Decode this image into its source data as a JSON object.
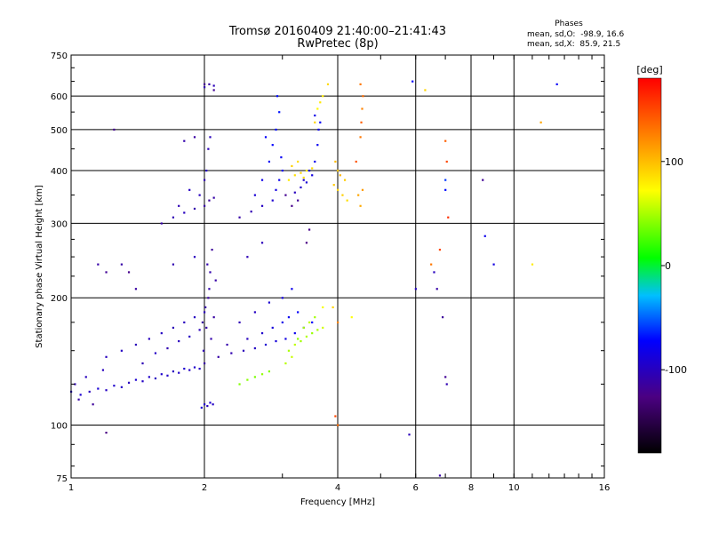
{
  "header": {
    "title_line1": "Tromsø 20160409 21:40:00–21:41:43",
    "title_line2": "RwPretec (8p)",
    "phases_title": "Phases",
    "phases_o": "mean, sd,O:  -98.9, 16.6",
    "phases_x": "mean, sd,X:  85.9, 21.5"
  },
  "colorbar": {
    "label": "[deg]",
    "ticks": [
      {
        "value": 100,
        "label": "100"
      },
      {
        "value": 0,
        "label": "0"
      },
      {
        "value": -100,
        "label": "-100"
      }
    ],
    "range": [
      -180,
      180
    ]
  },
  "chart_data": {
    "type": "scatter",
    "xlabel": "Frequency [MHz]",
    "ylabel": "Stationary phase Virtual Height [km]",
    "x_scale": "log",
    "y_scale": "log",
    "xlim": [
      1,
      16
    ],
    "ylim": [
      75,
      750
    ],
    "xticks": [
      {
        "value": 1,
        "label": "1"
      },
      {
        "value": 2,
        "label": "2"
      },
      {
        "value": 4,
        "label": "4"
      },
      {
        "value": 6,
        "label": "6"
      },
      {
        "value": 8,
        "label": "8"
      },
      {
        "value": 10,
        "label": "10"
      },
      {
        "value": 16,
        "label": "16"
      }
    ],
    "xgrid": [
      2,
      4,
      6,
      8,
      10
    ],
    "yticks": [
      {
        "value": 75,
        "label": "75"
      },
      {
        "value": 100,
        "label": "100"
      },
      {
        "value": 200,
        "label": "200"
      },
      {
        "value": 300,
        "label": "300"
      },
      {
        "value": 400,
        "label": "400"
      },
      {
        "value": 500,
        "label": "500"
      },
      {
        "value": 600,
        "label": "600"
      },
      {
        "value": 750,
        "label": "750"
      }
    ],
    "ygrid": [
      100,
      200,
      300,
      400,
      500,
      600
    ],
    "series": [
      {
        "values": [
          [
            1.0,
            120,
            -95
          ],
          [
            1.05,
            118,
            -92
          ],
          [
            1.1,
            120,
            -100
          ],
          [
            1.15,
            122,
            -90
          ],
          [
            1.2,
            121,
            -98
          ],
          [
            1.25,
            124,
            -94
          ],
          [
            1.3,
            123,
            -96
          ],
          [
            1.35,
            126,
            -100
          ],
          [
            1.4,
            128,
            -92
          ],
          [
            1.45,
            127,
            -97
          ],
          [
            1.5,
            130,
            -95
          ],
          [
            1.55,
            129,
            -99
          ],
          [
            1.6,
            132,
            -93
          ],
          [
            1.65,
            131,
            -96
          ],
          [
            1.7,
            134,
            -100
          ],
          [
            1.75,
            133,
            -95
          ],
          [
            1.8,
            136,
            -92
          ],
          [
            1.85,
            135,
            -98
          ],
          [
            1.9,
            137,
            -94
          ],
          [
            1.95,
            136,
            -97
          ],
          [
            1.02,
            125,
            -105
          ],
          [
            1.04,
            115,
            -110
          ],
          [
            1.08,
            130,
            -100
          ],
          [
            1.12,
            112,
            -115
          ],
          [
            1.18,
            135,
            -100
          ]
        ]
      },
      {
        "values": [
          [
            1.2,
            145,
            -100
          ],
          [
            1.3,
            150,
            -98
          ],
          [
            1.4,
            155,
            -102
          ],
          [
            1.5,
            160,
            -100
          ],
          [
            1.6,
            165,
            -98
          ],
          [
            1.7,
            170,
            -103
          ],
          [
            1.8,
            175,
            -100
          ],
          [
            1.9,
            180,
            -99
          ],
          [
            2.0,
            185,
            -101
          ],
          [
            1.45,
            140,
            -104
          ],
          [
            1.55,
            148,
            -97
          ],
          [
            1.65,
            152,
            -106
          ],
          [
            1.75,
            158,
            -100
          ],
          [
            1.85,
            162,
            -98
          ],
          [
            1.95,
            168,
            -102
          ]
        ]
      },
      {
        "values": [
          [
            1.97,
            110,
            -90
          ],
          [
            2.0,
            112,
            -95
          ],
          [
            2.03,
            111,
            -100
          ],
          [
            2.06,
            113,
            -92
          ],
          [
            2.09,
            112,
            -97
          ],
          [
            1.99,
            150,
            -105
          ],
          [
            2.02,
            170,
            -110
          ],
          [
            2.04,
            200,
            -112
          ],
          [
            2.06,
            230,
            -108
          ],
          [
            2.08,
            260,
            -115
          ],
          [
            2.01,
            190,
            -110
          ],
          [
            2.05,
            210,
            -106
          ],
          [
            2.07,
            160,
            -108
          ],
          [
            2.1,
            180,
            -112
          ],
          [
            2.12,
            220,
            -110
          ],
          [
            2.03,
            240,
            -107
          ],
          [
            1.98,
            175,
            -113
          ]
        ]
      },
      {
        "values": [
          [
            1.6,
            300,
            -110
          ],
          [
            1.7,
            310,
            -105
          ],
          [
            1.8,
            318,
            -100
          ],
          [
            1.9,
            325,
            -108
          ],
          [
            2.0,
            330,
            -112
          ],
          [
            2.05,
            340,
            -115
          ],
          [
            2.1,
            345,
            -110
          ],
          [
            1.95,
            350,
            -100
          ],
          [
            2.0,
            380,
            -105
          ],
          [
            2.02,
            400,
            -98
          ],
          [
            2.04,
            450,
            -102
          ],
          [
            2.06,
            480,
            -100
          ],
          [
            1.75,
            330,
            -104
          ],
          [
            1.85,
            360,
            -98
          ],
          [
            2.0,
            630,
            -105
          ],
          [
            2.05,
            640,
            -110
          ],
          [
            2.1,
            635,
            -102
          ]
        ]
      },
      {
        "values": [
          [
            2.0,
            140,
            -112
          ],
          [
            2.15,
            145,
            -110
          ],
          [
            2.3,
            148,
            -106
          ],
          [
            2.45,
            150,
            -102
          ],
          [
            2.6,
            152,
            -98
          ],
          [
            2.75,
            155,
            -92
          ],
          [
            2.9,
            158,
            -88
          ],
          [
            3.05,
            160,
            -84
          ],
          [
            3.2,
            165,
            -80
          ],
          [
            3.35,
            170,
            -76
          ],
          [
            3.5,
            175,
            -72
          ],
          [
            2.25,
            155,
            -108
          ],
          [
            2.5,
            160,
            -100
          ],
          [
            2.7,
            165,
            -94
          ],
          [
            2.85,
            170,
            -88
          ],
          [
            3.0,
            175,
            -82
          ],
          [
            3.1,
            180,
            -78
          ],
          [
            3.25,
            185,
            -74
          ],
          [
            2.4,
            175,
            -104
          ],
          [
            2.6,
            185,
            -98
          ],
          [
            2.8,
            195,
            -92
          ],
          [
            3.0,
            200,
            -85
          ],
          [
            3.15,
            210,
            -80
          ]
        ]
      },
      {
        "values": [
          [
            2.4,
            310,
            -110
          ],
          [
            2.55,
            320,
            -105
          ],
          [
            2.7,
            330,
            -98
          ],
          [
            2.85,
            340,
            -92
          ],
          [
            2.9,
            360,
            -85
          ],
          [
            2.95,
            380,
            -80
          ],
          [
            3.0,
            400,
            -78
          ],
          [
            2.8,
            420,
            -75
          ],
          [
            2.85,
            460,
            -72
          ],
          [
            2.9,
            500,
            -70
          ],
          [
            2.95,
            550,
            -68
          ],
          [
            2.92,
            600,
            -70
          ],
          [
            2.75,
            480,
            -74
          ],
          [
            2.7,
            380,
            -82
          ],
          [
            2.6,
            350,
            -90
          ],
          [
            2.98,
            430,
            -76
          ],
          [
            3.05,
            350,
            -120
          ],
          [
            3.15,
            330,
            -122
          ],
          [
            3.25,
            340,
            -118
          ]
        ]
      },
      {
        "values": [
          [
            3.2,
            355,
            -100
          ],
          [
            3.3,
            365,
            -95
          ],
          [
            3.4,
            375,
            -90
          ],
          [
            3.5,
            390,
            -85
          ],
          [
            3.55,
            420,
            -80
          ],
          [
            3.6,
            460,
            -78
          ],
          [
            3.62,
            500,
            -80
          ],
          [
            3.55,
            540,
            -82
          ],
          [
            3.45,
            400,
            -90
          ],
          [
            3.35,
            380,
            -95
          ],
          [
            3.65,
            520,
            -76
          ],
          [
            3.4,
            270,
            -125
          ],
          [
            3.45,
            290,
            -122
          ]
        ]
      },
      {
        "values": [
          [
            2.4,
            125,
            40
          ],
          [
            2.5,
            128,
            42
          ],
          [
            2.6,
            130,
            38
          ],
          [
            2.7,
            132,
            44
          ],
          [
            2.8,
            134,
            40
          ],
          [
            3.1,
            150,
            50
          ],
          [
            3.2,
            155,
            55
          ],
          [
            3.3,
            158,
            48
          ],
          [
            3.4,
            162,
            52
          ],
          [
            3.5,
            165,
            46
          ],
          [
            3.6,
            168,
            50
          ],
          [
            3.15,
            145,
            58
          ],
          [
            3.25,
            160,
            44
          ],
          [
            3.35,
            170,
            50
          ],
          [
            3.45,
            175,
            56
          ],
          [
            3.55,
            180,
            48
          ],
          [
            3.05,
            140,
            54
          ],
          [
            3.7,
            170,
            60
          ]
        ]
      },
      {
        "values": [
          [
            3.1,
            380,
            80
          ],
          [
            3.2,
            390,
            85
          ],
          [
            3.3,
            395,
            90
          ],
          [
            3.4,
            400,
            82
          ],
          [
            3.5,
            405,
            88
          ],
          [
            3.15,
            410,
            92
          ],
          [
            3.25,
            420,
            86
          ],
          [
            3.35,
            385,
            84
          ],
          [
            3.6,
            560,
            75
          ],
          [
            3.7,
            600,
            80
          ],
          [
            3.8,
            640,
            88
          ],
          [
            3.55,
            520,
            90
          ],
          [
            3.65,
            580,
            82
          ],
          [
            3.92,
            370,
            95
          ],
          [
            4.0,
            360,
            90
          ],
          [
            4.1,
            350,
            92
          ],
          [
            4.2,
            340,
            86
          ],
          [
            4.0,
            400,
            98
          ],
          [
            4.15,
            380,
            94
          ],
          [
            3.95,
            420,
            100
          ],
          [
            4.05,
            390,
            105
          ],
          [
            4.45,
            350,
            110
          ],
          [
            4.5,
            330,
            108
          ],
          [
            4.55,
            360,
            115
          ]
        ]
      },
      {
        "values": [
          [
            4.5,
            480,
            130
          ],
          [
            4.52,
            520,
            140
          ],
          [
            4.54,
            560,
            125
          ],
          [
            4.56,
            600,
            135
          ],
          [
            4.5,
            640,
            130
          ],
          [
            4.4,
            420,
            145
          ],
          [
            4.0,
            100,
            135
          ],
          [
            3.95,
            105,
            150
          ],
          [
            4.0,
            175,
            125
          ],
          [
            3.9,
            190,
            90
          ],
          [
            3.7,
            190,
            70
          ],
          [
            4.3,
            180,
            72
          ]
        ]
      },
      {
        "values": [
          [
            2.0,
            640,
            -120
          ],
          [
            2.1,
            620,
            -118
          ],
          [
            1.8,
            470,
            -108
          ],
          [
            1.9,
            480,
            -112
          ],
          [
            1.25,
            500,
            -120
          ],
          [
            1.2,
            230,
            -118
          ],
          [
            1.3,
            240,
            -110
          ],
          [
            1.35,
            230,
            -122
          ],
          [
            1.15,
            240,
            -110
          ],
          [
            1.2,
            96,
            -125
          ],
          [
            1.4,
            210,
            -112
          ],
          [
            1.7,
            240,
            -106
          ],
          [
            1.9,
            250,
            -100
          ],
          [
            2.5,
            250,
            -104
          ],
          [
            2.7,
            270,
            -102
          ]
        ]
      },
      {
        "values": [
          [
            5.8,
            95,
            -102
          ],
          [
            5.9,
            650,
            -75
          ],
          [
            6.0,
            210,
            -98
          ],
          [
            6.3,
            620,
            90
          ],
          [
            6.5,
            240,
            130
          ],
          [
            6.6,
            230,
            -100
          ],
          [
            6.7,
            210,
            -110
          ],
          [
            6.8,
            260,
            150
          ],
          [
            6.9,
            180,
            -115
          ],
          [
            7.0,
            470,
            140
          ],
          [
            7.05,
            420,
            150
          ],
          [
            7.1,
            310,
            160
          ],
          [
            7.0,
            130,
            -118
          ],
          [
            7.05,
            125,
            -105
          ],
          [
            6.8,
            76,
            -110
          ],
          [
            7.0,
            380,
            -60
          ],
          [
            7.0,
            360,
            -70
          ],
          [
            8.5,
            380,
            -118
          ],
          [
            8.6,
            280,
            -80
          ],
          [
            9.0,
            240,
            -85
          ],
          [
            11.0,
            240,
            80
          ],
          [
            11.5,
            520,
            110
          ],
          [
            12.5,
            640,
            -75
          ]
        ]
      }
    ]
  }
}
